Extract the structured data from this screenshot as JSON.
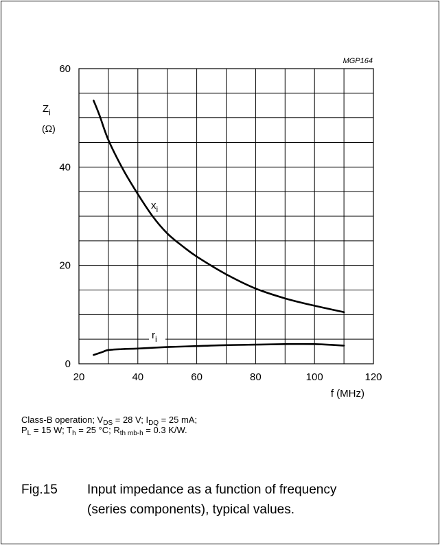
{
  "figure_code": "MGP164",
  "chart_data": {
    "type": "line",
    "x_label": "f (MHz)",
    "y_label_main": "Z",
    "y_label_sub": "i",
    "y_unit": "(Ω)",
    "xlim": [
      20,
      120
    ],
    "ylim": [
      0,
      60
    ],
    "x_ticks": [
      20,
      40,
      60,
      80,
      100,
      120
    ],
    "y_ticks": [
      0,
      20,
      40,
      60
    ],
    "grid": true,
    "series": [
      {
        "name": "x",
        "name_sub": "i",
        "x": [
          25,
          27,
          30,
          35,
          40,
          45,
          50,
          55,
          60,
          70,
          80,
          90,
          100,
          110
        ],
        "y": [
          53.5,
          50.5,
          45.5,
          39.5,
          34.5,
          30,
          26.5,
          24,
          21.8,
          18.2,
          15.3,
          13.3,
          11.8,
          10.5
        ]
      },
      {
        "name": "r",
        "name_sub": "i",
        "x": [
          25,
          28,
          30,
          35,
          40,
          50,
          60,
          70,
          80,
          90,
          100,
          110
        ],
        "y": [
          1.8,
          2.4,
          2.8,
          3.0,
          3.1,
          3.4,
          3.6,
          3.8,
          3.9,
          4.0,
          4.0,
          3.7
        ]
      }
    ]
  },
  "conditions": {
    "line1": {
      "t1": "Class-B operation; V",
      "s1": "DS",
      "t2": " = 28 V; I",
      "s2": "DQ",
      "t3": " = 25 mA;"
    },
    "line2": {
      "t1": "P",
      "s1": "L",
      "t2": " = 15 W; T",
      "s2": "h",
      "t3": " = 25 °C; R",
      "s3": "th mb-h",
      "t4": " = 0.3 K/W."
    }
  },
  "caption": {
    "fig_number": "Fig.15",
    "line1": "Input impedance as a function of frequency",
    "line2": "(series components), typical values."
  }
}
